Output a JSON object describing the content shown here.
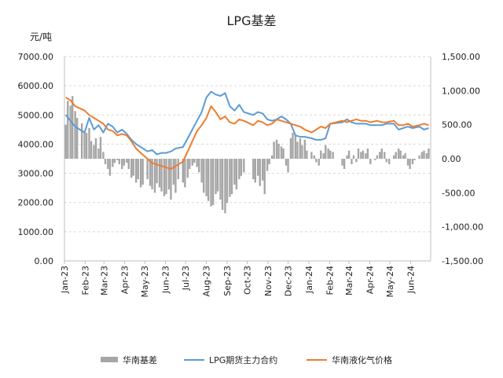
{
  "chart_data": {
    "type": "line",
    "title": "LPG基差",
    "ylabel_left": "元/吨",
    "left_axis": {
      "range": [
        0,
        7000
      ],
      "ticks": [
        "0.00",
        "1000.00",
        "2000.00",
        "3000.00",
        "4000.00",
        "5000.00",
        "6000.00",
        "7000.00"
      ]
    },
    "right_axis": {
      "range": [
        -1500,
        1500
      ],
      "ticks": [
        "-1,500.00",
        "-1,000.00",
        "-500.00",
        "0.00",
        "500.00",
        "1,000.00",
        "1,500.00"
      ]
    },
    "x_ticks": [
      "Jan-23",
      "Feb-23",
      "Mar-23",
      "Apr-23",
      "May-23",
      "Jun-23",
      "Jul-23",
      "Aug-23",
      "Sep-23",
      "Oct-23",
      "Nov-23",
      "Dec-23",
      "Jan-24",
      "Feb-24",
      "Mar-24",
      "Apr-24",
      "May-24",
      "Jun-24"
    ],
    "grid": "horizontal dashed",
    "legend_position": "bottom",
    "colors": {
      "basis": "#a6a6a6",
      "futures": "#5b9bd5",
      "spot": "#ed7d31"
    },
    "series": [
      {
        "name": "华南基差",
        "type": "bar",
        "axis": "right",
        "x": [
          "2023-01-03",
          "2023-01-06",
          "2023-01-10",
          "2023-01-13",
          "2023-01-17",
          "2023-01-20",
          "2023-01-27",
          "2023-01-31",
          "2023-02-03",
          "2023-02-07",
          "2023-02-10",
          "2023-02-14",
          "2023-02-17",
          "2023-02-21",
          "2023-02-24",
          "2023-02-28",
          "2023-03-03",
          "2023-03-07",
          "2023-03-10",
          "2023-03-14",
          "2023-03-17",
          "2023-03-21",
          "2023-03-24",
          "2023-03-28",
          "2023-03-31",
          "2023-04-04",
          "2023-04-07",
          "2023-04-11",
          "2023-04-14",
          "2023-04-18",
          "2023-04-21",
          "2023-04-25",
          "2023-04-28",
          "2023-05-05",
          "2023-05-09",
          "2023-05-12",
          "2023-05-16",
          "2023-05-19",
          "2023-05-23",
          "2023-05-26",
          "2023-05-30",
          "2023-06-02",
          "2023-06-06",
          "2023-06-09",
          "2023-06-13",
          "2023-06-16",
          "2023-06-20",
          "2023-06-27",
          "2023-06-30",
          "2023-07-04",
          "2023-07-07",
          "2023-07-11",
          "2023-07-14",
          "2023-07-18",
          "2023-07-21",
          "2023-07-25",
          "2023-07-28",
          "2023-08-01",
          "2023-08-04",
          "2023-08-08",
          "2023-08-11",
          "2023-08-15",
          "2023-08-18",
          "2023-08-22",
          "2023-08-25",
          "2023-08-29",
          "2023-09-01",
          "2023-09-05",
          "2023-09-08",
          "2023-09-12",
          "2023-09-15",
          "2023-09-19",
          "2023-09-22",
          "2023-09-26",
          "2023-10-10",
          "2023-10-13",
          "2023-10-17",
          "2023-10-20",
          "2023-10-24",
          "2023-10-27",
          "2023-10-31",
          "2023-11-03",
          "2023-11-07",
          "2023-11-10",
          "2023-11-14",
          "2023-11-17",
          "2023-11-21",
          "2023-11-24",
          "2023-11-28",
          "2023-12-01",
          "2023-12-05",
          "2023-12-08",
          "2023-12-12",
          "2023-12-15",
          "2023-12-19",
          "2023-12-22",
          "2023-12-26",
          "2023-12-29",
          "2024-01-05",
          "2024-01-09",
          "2024-01-12",
          "2024-01-16",
          "2024-01-19",
          "2024-01-23",
          "2024-01-26",
          "2024-01-30",
          "2024-02-02",
          "2024-02-06",
          "2024-02-20",
          "2024-02-23",
          "2024-02-27",
          "2024-03-01",
          "2024-03-05",
          "2024-03-08",
          "2024-03-12",
          "2024-03-15",
          "2024-03-19",
          "2024-03-22",
          "2024-03-26",
          "2024-03-29",
          "2024-04-02",
          "2024-04-09",
          "2024-04-12",
          "2024-04-16",
          "2024-04-19",
          "2024-04-23",
          "2024-04-26",
          "2024-04-30",
          "2024-05-07",
          "2024-05-10",
          "2024-05-14",
          "2024-05-17",
          "2024-05-21",
          "2024-05-24",
          "2024-05-28",
          "2024-05-31",
          "2024-06-04",
          "2024-06-07",
          "2024-06-14",
          "2024-06-18",
          "2024-06-21",
          "2024-06-25",
          "2024-06-28"
        ],
        "values": [
          500,
          850,
          780,
          920,
          700,
          600,
          520,
          400,
          380,
          450,
          260,
          200,
          300,
          150,
          320,
          100,
          -80,
          -150,
          -250,
          -120,
          -60,
          -20,
          -80,
          -150,
          -100,
          -60,
          -150,
          -280,
          -250,
          -350,
          -300,
          -420,
          -380,
          -300,
          -400,
          -450,
          -500,
          -360,
          -420,
          -480,
          -550,
          -520,
          -450,
          -600,
          -380,
          -500,
          -300,
          -350,
          -420,
          -280,
          -150,
          -100,
          -60,
          -120,
          -200,
          -350,
          -500,
          -550,
          -620,
          -700,
          -680,
          -520,
          -480,
          -600,
          -750,
          -800,
          -650,
          -560,
          -520,
          -380,
          -450,
          -300,
          -250,
          -200,
          -300,
          -350,
          -250,
          -400,
          -320,
          -520,
          -180,
          -80,
          50,
          250,
          280,
          220,
          180,
          150,
          -100,
          -200,
          300,
          380,
          350,
          250,
          300,
          200,
          280,
          120,
          100,
          50,
          -50,
          -100,
          120,
          80,
          200,
          150,
          120,
          100,
          -100,
          -150,
          50,
          120,
          -80,
          50,
          -50,
          150,
          100,
          120,
          80,
          150,
          -80,
          -20,
          50,
          100,
          150,
          100,
          -50,
          -80,
          50,
          100,
          150,
          120,
          50,
          80,
          -100,
          -150,
          -80,
          -20,
          50,
          100,
          120,
          80,
          150
        ],
        "unit_axis": "right"
      },
      {
        "name": "LPG期货主力合约",
        "type": "line",
        "axis": "left",
        "x": [
          "2023-01-03",
          "2023-01-10",
          "2023-01-17",
          "2023-01-31",
          "2023-02-07",
          "2023-02-14",
          "2023-02-21",
          "2023-02-28",
          "2023-03-07",
          "2023-03-14",
          "2023-03-21",
          "2023-03-28",
          "2023-04-04",
          "2023-04-11",
          "2023-04-18",
          "2023-04-25",
          "2023-05-05",
          "2023-05-12",
          "2023-05-19",
          "2023-05-26",
          "2023-06-02",
          "2023-06-09",
          "2023-06-16",
          "2023-06-27",
          "2023-07-04",
          "2023-07-11",
          "2023-07-18",
          "2023-07-25",
          "2023-08-01",
          "2023-08-08",
          "2023-08-15",
          "2023-08-22",
          "2023-08-29",
          "2023-09-05",
          "2023-09-12",
          "2023-09-19",
          "2023-09-26",
          "2023-10-10",
          "2023-10-17",
          "2023-10-24",
          "2023-10-31",
          "2023-11-07",
          "2023-11-14",
          "2023-11-21",
          "2023-11-28",
          "2023-12-05",
          "2023-12-12",
          "2023-12-19",
          "2023-12-26",
          "2024-01-05",
          "2024-01-12",
          "2024-01-19",
          "2024-01-26",
          "2024-02-02",
          "2024-02-20",
          "2024-02-27",
          "2024-03-05",
          "2024-03-12",
          "2024-03-19",
          "2024-03-26",
          "2024-04-02",
          "2024-04-12",
          "2024-04-19",
          "2024-04-26",
          "2024-05-07",
          "2024-05-14",
          "2024-05-21",
          "2024-05-28",
          "2024-06-04",
          "2024-06-14",
          "2024-06-21",
          "2024-06-28"
        ],
        "values": [
          5000,
          4800,
          4600,
          4400,
          4900,
          4500,
          4650,
          4400,
          4700,
          4600,
          4400,
          4500,
          4350,
          4150,
          4000,
          3900,
          3750,
          3800,
          3650,
          3700,
          3700,
          3750,
          3850,
          3900,
          4200,
          4500,
          4800,
          5100,
          5600,
          5800,
          5700,
          5650,
          5750,
          5300,
          5150,
          5350,
          5100,
          5000,
          5100,
          5050,
          4850,
          4800,
          4850,
          4950,
          4850,
          4700,
          4300,
          4250,
          4250,
          4200,
          4150,
          4150,
          4200,
          4700,
          4750,
          4850,
          4750,
          4700,
          4700,
          4700,
          4650,
          4650,
          4650,
          4700,
          4700,
          4500,
          4550,
          4600,
          4550,
          4600,
          4500,
          4550
        ]
      },
      {
        "name": "华南液化气价格",
        "type": "line",
        "axis": "left",
        "x": [
          "2023-01-03",
          "2023-01-10",
          "2023-01-17",
          "2023-01-31",
          "2023-02-07",
          "2023-02-14",
          "2023-02-21",
          "2023-02-28",
          "2023-03-07",
          "2023-03-14",
          "2023-03-21",
          "2023-03-28",
          "2023-04-04",
          "2023-04-11",
          "2023-04-18",
          "2023-04-25",
          "2023-05-05",
          "2023-05-12",
          "2023-05-19",
          "2023-05-26",
          "2023-06-02",
          "2023-06-09",
          "2023-06-16",
          "2023-06-27",
          "2023-07-04",
          "2023-07-11",
          "2023-07-18",
          "2023-07-25",
          "2023-08-01",
          "2023-08-08",
          "2023-08-15",
          "2023-08-22",
          "2023-08-29",
          "2023-09-05",
          "2023-09-12",
          "2023-09-19",
          "2023-09-26",
          "2023-10-10",
          "2023-10-17",
          "2023-10-24",
          "2023-10-31",
          "2023-11-07",
          "2023-11-14",
          "2023-11-21",
          "2023-11-28",
          "2023-12-05",
          "2023-12-12",
          "2023-12-19",
          "2023-12-26",
          "2024-01-05",
          "2024-01-12",
          "2024-01-19",
          "2024-01-26",
          "2024-02-02",
          "2024-02-20",
          "2024-02-27",
          "2024-03-05",
          "2024-03-12",
          "2024-03-19",
          "2024-03-26",
          "2024-04-02",
          "2024-04-12",
          "2024-04-19",
          "2024-04-26",
          "2024-05-07",
          "2024-05-14",
          "2024-05-21",
          "2024-05-28",
          "2024-06-04",
          "2024-06-14",
          "2024-06-21",
          "2024-06-28"
        ],
        "values": [
          5600,
          5500,
          5300,
          5150,
          5000,
          4900,
          4800,
          4700,
          4500,
          4450,
          4300,
          4350,
          4300,
          4100,
          3850,
          3700,
          3500,
          3350,
          3300,
          3250,
          3200,
          3150,
          3250,
          3400,
          3750,
          4100,
          4450,
          4650,
          4900,
          5300,
          5100,
          4850,
          4950,
          4750,
          4700,
          4850,
          4800,
          4650,
          4800,
          4750,
          4650,
          4700,
          4850,
          4800,
          4750,
          4700,
          4650,
          4600,
          4500,
          4400,
          4500,
          4600,
          4550,
          4700,
          4800,
          4750,
          4800,
          4850,
          4800,
          4800,
          4750,
          4800,
          4750,
          4750,
          4800,
          4650,
          4650,
          4700,
          4600,
          4650,
          4700,
          4650
        ]
      }
    ]
  }
}
